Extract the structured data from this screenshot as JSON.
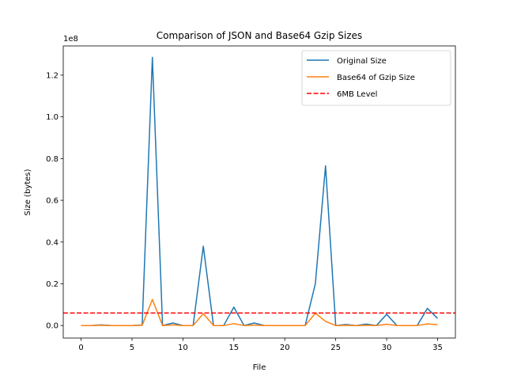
{
  "chart_data": {
    "type": "line",
    "title": "Comparison of JSON and Base64 Gzip Sizes",
    "xlabel": "File",
    "ylabel": "Size (bytes)",
    "y_offset_label": "1e8",
    "xlim": [
      -1.75,
      36.75
    ],
    "ylim": [
      -6000000,
      134000000
    ],
    "x_ticks": [
      0,
      5,
      10,
      15,
      20,
      25,
      30,
      35
    ],
    "x_tick_labels": [
      "0",
      "5",
      "10",
      "15",
      "20",
      "25",
      "30",
      "35"
    ],
    "y_ticks": [
      0,
      20000000,
      40000000,
      60000000,
      80000000,
      100000000,
      120000000
    ],
    "y_tick_labels": [
      "0.0",
      "0.2",
      "0.4",
      "0.6",
      "0.8",
      "1.0",
      "1.2"
    ],
    "grid": false,
    "legend_position": "top-right",
    "x": [
      0,
      1,
      2,
      3,
      4,
      5,
      6,
      7,
      8,
      9,
      10,
      11,
      12,
      13,
      14,
      15,
      16,
      17,
      18,
      19,
      20,
      21,
      22,
      23,
      24,
      25,
      26,
      27,
      28,
      29,
      30,
      31,
      32,
      33,
      34,
      35
    ],
    "series": [
      {
        "name": "Original Size",
        "color": "#1f77b4",
        "style": "solid",
        "values": [
          0,
          0,
          300000,
          0,
          0,
          0,
          200000,
          128500000,
          0,
          1200000,
          0,
          0,
          38000000,
          0,
          0,
          8800000,
          0,
          1200000,
          0,
          0,
          0,
          0,
          0,
          20000000,
          76500000,
          0,
          500000,
          0,
          700000,
          0,
          5400000,
          0,
          0,
          0,
          8200000,
          3400000
        ]
      },
      {
        "name": "Base64 of Gzip Size",
        "color": "#ff7f0e",
        "style": "solid",
        "values": [
          0,
          0,
          100000,
          0,
          0,
          0,
          100000,
          12500000,
          0,
          300000,
          0,
          0,
          5700000,
          0,
          0,
          900000,
          0,
          200000,
          0,
          0,
          0,
          0,
          0,
          5900000,
          2000000,
          0,
          100000,
          0,
          100000,
          0,
          600000,
          0,
          0,
          0,
          800000,
          400000
        ]
      }
    ],
    "hlines": [
      {
        "name": "6MB Level",
        "value": 6000000,
        "color": "#ff0000",
        "style": "dashed"
      }
    ]
  }
}
